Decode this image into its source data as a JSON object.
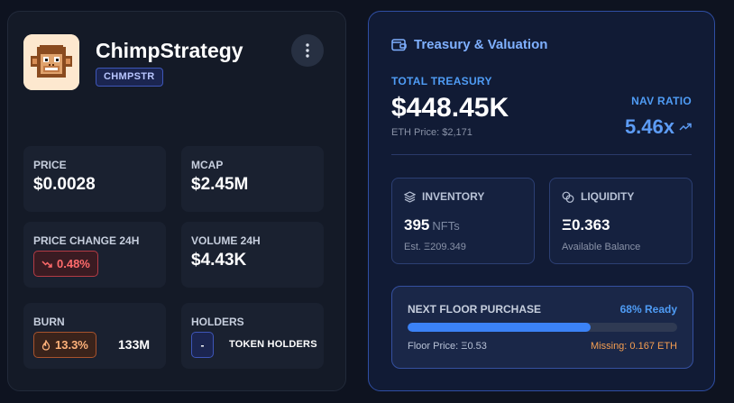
{
  "token": {
    "name": "ChimpStrategy",
    "ticker": "CHMPSTR",
    "avatar_icon": "pixel-chimp-icon"
  },
  "stats": {
    "price": {
      "label": "PRICE",
      "value": "$0.0028"
    },
    "mcap": {
      "label": "MCAP",
      "value": "$2.45M"
    },
    "price_change": {
      "label": "PRICE CHANGE 24H",
      "value": "0.48%",
      "direction": "down"
    },
    "volume": {
      "label": "VOLUME 24H",
      "value": "$4.43K"
    },
    "burn": {
      "label": "BURN",
      "percent": "13.3%",
      "amount": "133M"
    },
    "holders": {
      "label": "HOLDERS",
      "value": "-",
      "caption": "TOKEN HOLDERS"
    }
  },
  "treasury": {
    "title": "Treasury & Valuation",
    "total_label": "TOTAL TREASURY",
    "total_value": "$448.45K",
    "eth_price": "ETH Price: $2,171",
    "nav_label": "NAV RATIO",
    "nav_value": "5.46x",
    "inventory": {
      "label": "INVENTORY",
      "value": "395",
      "unit": "NFTs",
      "sub": "Est. Ξ209.349"
    },
    "liquidity": {
      "label": "LIQUIDITY",
      "value": "Ξ0.363",
      "sub": "Available Balance"
    },
    "floor": {
      "title": "NEXT FLOOR PURCHASE",
      "ready": "68% Ready",
      "progress": 0.68,
      "price": "Floor Price: Ξ0.53",
      "missing": "Missing: 0.167 ETH"
    }
  },
  "colors": {
    "accent": "#4f9cf5",
    "negative": "#ff6b6b",
    "burn": "#ffb27a",
    "missing": "#f59e51"
  }
}
